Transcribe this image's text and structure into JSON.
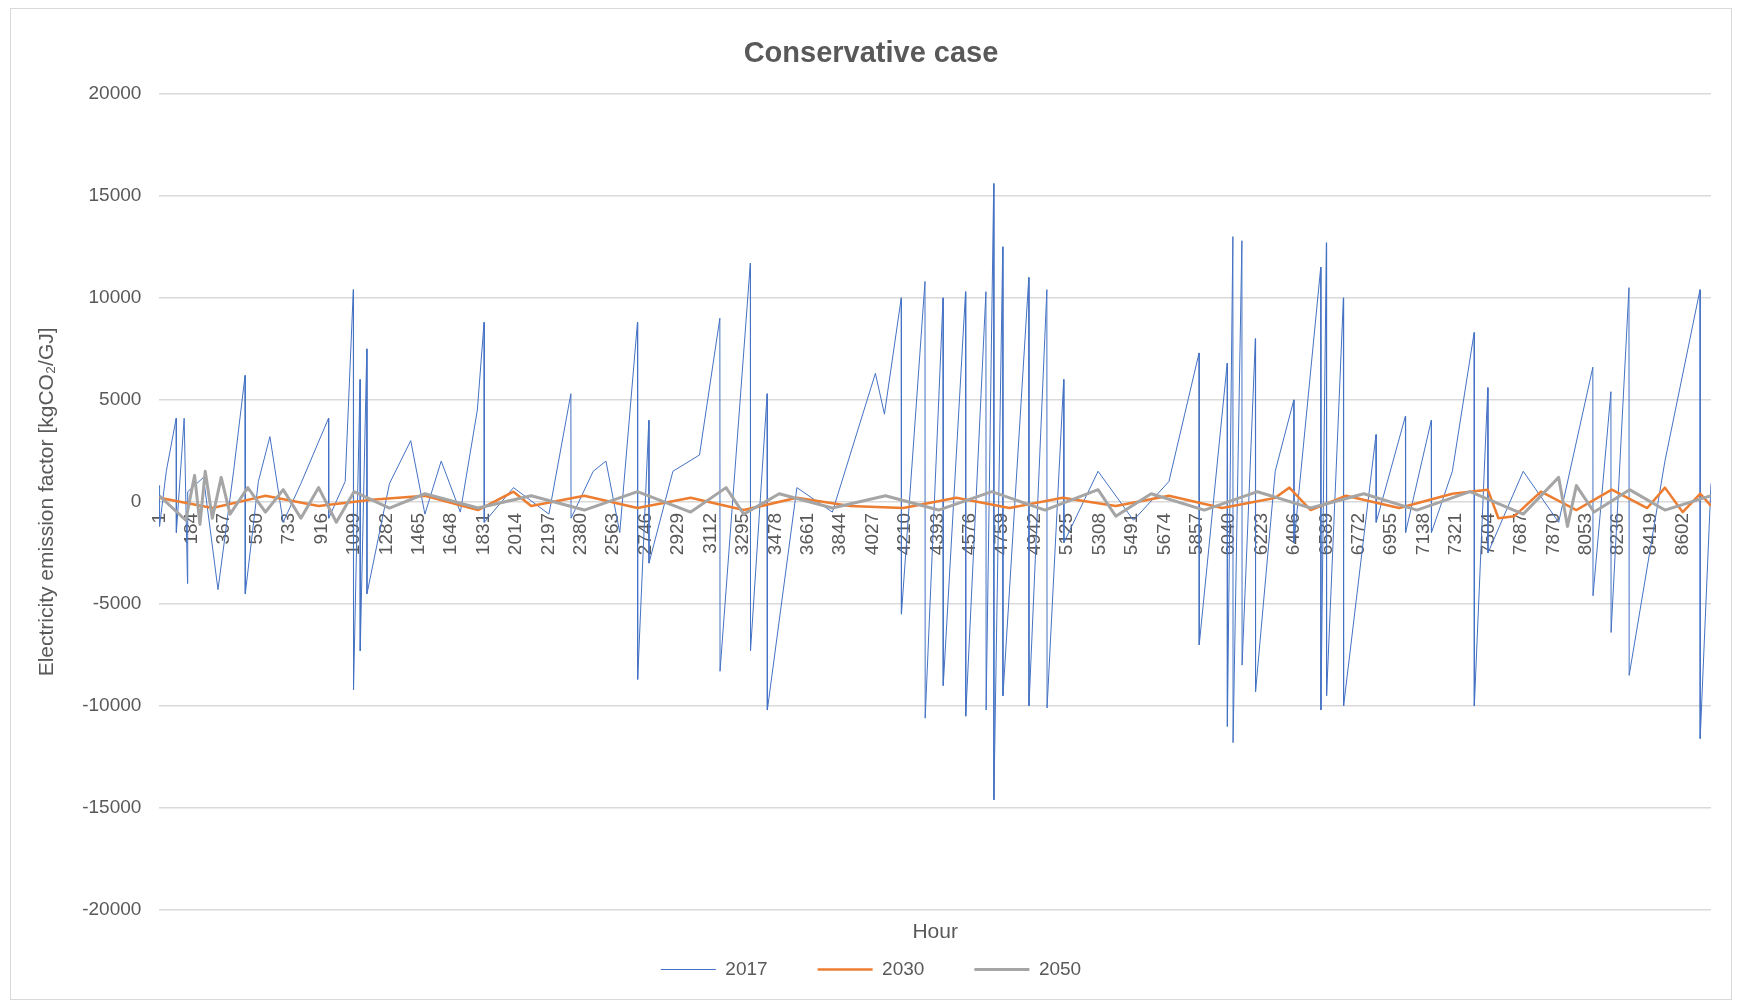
{
  "chart_data": {
    "type": "line",
    "title": "Conservative case",
    "xlabel": "Hour",
    "ylabel": "Electricity emission factor [kgCO₂/GJ]",
    "xlim": [
      1,
      8760
    ],
    "xticks": [
      1,
      184,
      367,
      550,
      733,
      916,
      1099,
      1282,
      1465,
      1648,
      1831,
      2014,
      2197,
      2380,
      2563,
      2746,
      2929,
      3112,
      3295,
      3478,
      3661,
      3844,
      4027,
      4210,
      4393,
      4576,
      4759,
      4942,
      5125,
      5308,
      5491,
      5674,
      5857,
      6040,
      6223,
      6406,
      6589,
      6772,
      6955,
      7138,
      7321,
      7504,
      7687,
      7870,
      8053,
      8236,
      8419,
      8602
    ],
    "ylim": [
      -20000,
      20000
    ],
    "yticks": [
      -20000,
      -15000,
      -10000,
      -5000,
      0,
      5000,
      10000,
      15000,
      20000
    ],
    "grid": "y",
    "legend": "bottom",
    "marker": "none",
    "series": [
      {
        "name": "2017",
        "color": "#4472c4",
        "x": [
          1,
          2,
          40,
          96,
          97,
          141,
          160,
          161,
          250,
          332,
          420,
          485,
          486,
          560,
          625,
          700,
          800,
          956,
          957,
          1050,
          1096,
          1097,
          1134,
          1135,
          1172,
          1173,
          1300,
          1420,
          1500,
          1592,
          1700,
          1796,
          1834,
          1835,
          2000,
          2200,
          2324,
          2325,
          2450,
          2522,
          2600,
          2700,
          2701,
          2764,
          2765,
          2900,
          3050,
          3165,
          3166,
          3337,
          3338,
          3432,
          3433,
          3600,
          3800,
          4043,
          4094,
          4189,
          4190,
          4323,
          4324,
          4425,
          4426,
          4552,
          4553,
          4667,
          4668,
          4711,
          4712,
          4762,
          4763,
          4909,
          4910,
          5011,
          5012,
          5106,
          5107,
          5300,
          5500,
          5700,
          5870,
          5871,
          6029,
          6030,
          6061,
          6062,
          6112,
          6113,
          6188,
          6189,
          6300,
          6405,
          6406,
          6557,
          6558,
          6589,
          6590,
          6685,
          6686,
          6869,
          6870,
          7035,
          7036,
          7181,
          7182,
          7300,
          7423,
          7424,
          7500,
          7501,
          7700,
          7900,
          8093,
          8094,
          8195,
          8196,
          8297,
          8298,
          8500,
          8698,
          8699,
          8760
        ],
        "values": [
          800,
          -1200,
          1500,
          4100,
          -1500,
          4100,
          -4000,
          500,
          1200,
          -4300,
          1500,
          6200,
          -4500,
          1000,
          3200,
          -1000,
          900,
          4100,
          -800,
          1000,
          10400,
          -9200,
          6000,
          -7300,
          7500,
          -4500,
          900,
          3000,
          -600,
          2000,
          -500,
          4500,
          8800,
          -1000,
          700,
          -600,
          5300,
          -800,
          1500,
          2000,
          -1500,
          8800,
          -8700,
          4000,
          -3000,
          1500,
          2300,
          9000,
          -8300,
          11700,
          -7300,
          5300,
          -10200,
          700,
          -500,
          6300,
          4300,
          10000,
          -5500,
          10800,
          -10600,
          10000,
          -9000,
          10300,
          -10500,
          10300,
          -10200,
          15600,
          -14600,
          12500,
          -9500,
          11000,
          -10000,
          10400,
          -10100,
          6000,
          -2000,
          1500,
          -900,
          1000,
          7300,
          -7000,
          6800,
          -11000,
          13000,
          -11800,
          12800,
          -8000,
          8000,
          -9300,
          1500,
          5000,
          -2000,
          11500,
          -10200,
          12700,
          -9500,
          10000,
          -10000,
          3300,
          -1000,
          4200,
          -1500,
          4000,
          -1500,
          1500,
          8300,
          -10000,
          5600,
          -2500,
          1500,
          -1000,
          6600,
          -4600,
          5400,
          -6400,
          10500,
          -8500,
          2000,
          10400,
          -11600,
          900
        ]
      },
      {
        "name": "2030",
        "color": "#ed7d31",
        "x": [
          1,
          300,
          600,
          900,
          1200,
          1500,
          1800,
          2000,
          2100,
          2400,
          2700,
          3000,
          3300,
          3600,
          3900,
          4200,
          4500,
          4800,
          5100,
          5400,
          5700,
          6000,
          6300,
          6380,
          6500,
          6700,
          7000,
          7300,
          7500,
          7560,
          7650,
          7800,
          8000,
          8200,
          8400,
          8500,
          8600,
          8700,
          8760
        ],
        "values": [
          200,
          -300,
          300,
          -200,
          100,
          300,
          -400,
          500,
          -200,
          300,
          -300,
          200,
          -400,
          200,
          -200,
          -300,
          200,
          -300,
          200,
          -200,
          300,
          -300,
          200,
          700,
          -400,
          300,
          -300,
          400,
          600,
          -800,
          -700,
          500,
          -400,
          600,
          -300,
          700,
          -500,
          400,
          -200
        ]
      },
      {
        "name": "2050",
        "color": "#a5a5a5",
        "x": [
          1,
          150,
          200,
          230,
          260,
          300,
          350,
          400,
          500,
          600,
          700,
          800,
          900,
          1000,
          1100,
          1300,
          1500,
          1800,
          2100,
          2400,
          2700,
          3000,
          3200,
          3300,
          3500,
          3800,
          4100,
          4400,
          4700,
          5000,
          5300,
          5400,
          5600,
          5900,
          6200,
          6500,
          6800,
          7100,
          7400,
          7700,
          7900,
          7950,
          8000,
          8100,
          8300,
          8500,
          8760
        ],
        "values": [
          300,
          -900,
          1300,
          -1100,
          1500,
          -800,
          1200,
          -600,
          700,
          -500,
          600,
          -800,
          700,
          -1000,
          500,
          -300,
          400,
          -300,
          300,
          -400,
          500,
          -500,
          700,
          -600,
          400,
          -300,
          300,
          -400,
          500,
          -400,
          600,
          -700,
          400,
          -400,
          500,
          -300,
          400,
          -400,
          500,
          -600,
          1200,
          -1200,
          800,
          -500,
          600,
          -400,
          300
        ]
      }
    ]
  }
}
